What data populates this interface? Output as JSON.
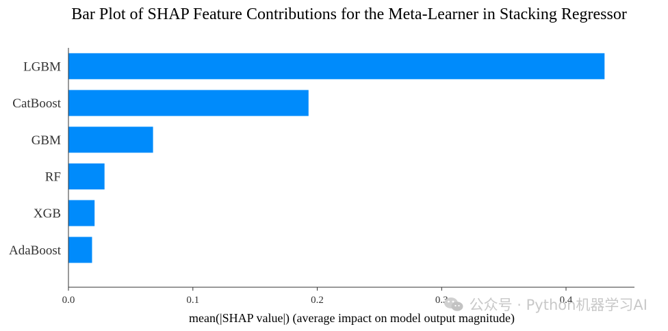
{
  "chart_data": {
    "type": "bar",
    "orientation": "horizontal",
    "title": "Bar Plot of SHAP Feature Contributions for the Meta-Learner in Stacking Regressor",
    "xlabel": "mean(|SHAP value|) (average impact on model output magnitude)",
    "ylabel": "",
    "categories": [
      "LGBM",
      "CatBoost",
      "GBM",
      "RF",
      "XGB",
      "AdaBoost"
    ],
    "values": [
      0.431,
      0.193,
      0.068,
      0.029,
      0.021,
      0.019
    ],
    "xlim": [
      0,
      0.45
    ],
    "xticks": [
      0.0,
      0.1,
      0.2,
      0.3,
      0.4
    ],
    "xtick_labels": [
      "0.0",
      "0.1",
      "0.2",
      "0.3",
      "0.4"
    ],
    "grid": false,
    "bar_color": "#008bfb"
  },
  "watermark": {
    "text": "公众号 · Python机器学习AI",
    "icon": "wechat-icon"
  }
}
